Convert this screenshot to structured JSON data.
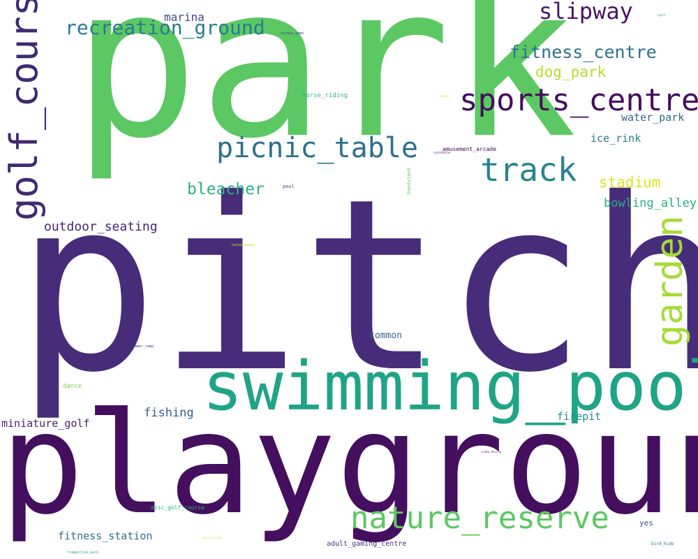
{
  "words": [
    {
      "key": "pitch",
      "text": "pitch",
      "color": "#472c7a"
    },
    {
      "key": "playground",
      "text": "playground",
      "color": "#440f5e"
    },
    {
      "key": "park",
      "text": "park",
      "color": "#5cc863"
    },
    {
      "key": "swimming_pool",
      "text": "swimming_pool",
      "color": "#20a486"
    },
    {
      "key": "golf_course",
      "text": "golf_course",
      "color": "#3f2a72"
    },
    {
      "key": "sports_centre",
      "text": "sports_centre",
      "color": "#440f5e"
    },
    {
      "key": "picnic_table",
      "text": "picnic_table",
      "color": "#2d708e"
    },
    {
      "key": "track",
      "text": "track",
      "color": "#25858e"
    },
    {
      "key": "nature_reserve",
      "text": "nature_reserve",
      "color": "#5cc863"
    },
    {
      "key": "garden",
      "text": "garden",
      "color": "#a5db36"
    },
    {
      "key": "recreation_ground",
      "text": "recreation_ground",
      "color": "#287c8e"
    },
    {
      "key": "slipway",
      "text": "slipway",
      "color": "#481567"
    },
    {
      "key": "fitness_centre",
      "text": "fitness_centre",
      "color": "#2d708e"
    },
    {
      "key": "dog_park",
      "text": "dog_park",
      "color": "#b5de2b"
    },
    {
      "key": "bleacher",
      "text": "bleacher",
      "color": "#2db27d"
    },
    {
      "key": "outdoor_seating",
      "text": "outdoor_seating",
      "color": "#482677"
    },
    {
      "key": "stadium",
      "text": "stadium",
      "color": "#dde318"
    },
    {
      "key": "bowling_alley",
      "text": "bowling_alley",
      "color": "#29af7f"
    },
    {
      "key": "water_park",
      "text": "water_park",
      "color": "#31688e"
    },
    {
      "key": "ice_rink",
      "text": "ice_rink",
      "color": "#287c8e"
    },
    {
      "key": "marina",
      "text": "marina",
      "color": "#3e4a89"
    },
    {
      "key": "fishing",
      "text": "fishing",
      "color": "#355f8d"
    },
    {
      "key": "miniature_golf",
      "text": "miniature_golf",
      "color": "#481f70"
    },
    {
      "key": "fitness_station",
      "text": "fitness_station",
      "color": "#2d718e"
    },
    {
      "key": "firepit",
      "text": "firepit",
      "color": "#23898e"
    },
    {
      "key": "common",
      "text": "common",
      "color": "#33638d"
    },
    {
      "key": "yes",
      "text": "yes",
      "color": "#3b528b"
    },
    {
      "key": "adult_gaming_centre",
      "text": "adult_gaming_centre",
      "color": "#472d7b"
    },
    {
      "key": "horse_riding",
      "text": "horse_riding",
      "color": "#35b779"
    },
    {
      "key": "amusement_arcade",
      "text": "amusement_arcade",
      "color": "#440154"
    },
    {
      "key": "dance",
      "text": "dance",
      "color": "#7ad151"
    },
    {
      "key": "disc_golf_course",
      "text": "disc_golf_course",
      "color": "#2ab07f"
    },
    {
      "key": "bandstand",
      "text": "bandstand",
      "color": "#5ec962"
    },
    {
      "key": "pool",
      "text": "pool",
      "color": "#3b528b"
    },
    {
      "key": "escape_game",
      "text": "escape_game",
      "color": "#3e4989"
    },
    {
      "key": "summer_camp",
      "text": "summer_camp",
      "color": "#443983"
    },
    {
      "key": "cornhole",
      "text": "cornhole",
      "color": "#46327e"
    },
    {
      "key": "hackerspace",
      "text": "hackerspace",
      "color": "#c2df23"
    },
    {
      "key": "bird_hide",
      "text": "bird_hide",
      "color": "#2a788e"
    },
    {
      "key": "trampoline_park",
      "text": "trampoline_park",
      "color": "#22a884"
    },
    {
      "key": "sport",
      "text": "sport",
      "color": "#1f9e89"
    },
    {
      "key": "picnic_site",
      "text": "picnic_site",
      "color": "#c8e020"
    },
    {
      "key": "scuba_diving",
      "text": "scuba_diving",
      "color": "#482173"
    },
    {
      "key": "tiny_right",
      "text": "track",
      "color": "#d8e219"
    }
  ]
}
